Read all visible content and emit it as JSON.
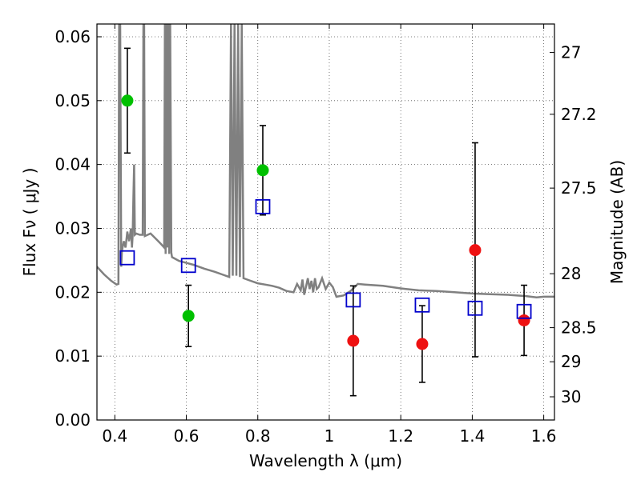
{
  "chart_data": {
    "type": "scatter",
    "title": "",
    "xlabel": "Wavelength  λ (μm)",
    "ylabel": "Flux  Fν  ( μJy )",
    "ylabel_right": "Magnitude (AB)",
    "xlim": [
      0.35,
      1.63
    ],
    "ylim": [
      0.0,
      0.062
    ],
    "grid": true,
    "x_ticks": [
      0.4,
      0.6,
      0.8,
      1.0,
      1.2,
      1.4,
      1.6
    ],
    "x_tick_labels": [
      "0.4",
      "0.6",
      "0.8",
      "1",
      "1.2",
      "1.4",
      "1.6"
    ],
    "y_ticks": [
      0.0,
      0.01,
      0.02,
      0.03,
      0.04,
      0.05,
      0.06
    ],
    "y_tick_labels": [
      "0.00",
      "0.01",
      "0.02",
      "0.03",
      "0.04",
      "0.05",
      "0.06"
    ],
    "right_ticks": [
      {
        "mag": 27,
        "label": "27"
      },
      {
        "mag": 27.2,
        "label": "27.2"
      },
      {
        "mag": 27.5,
        "label": "27.5"
      },
      {
        "mag": 28,
        "label": "28"
      },
      {
        "mag": 28.5,
        "label": "28.5"
      },
      {
        "mag": 29,
        "label": "29"
      },
      {
        "mag": 30,
        "label": "30"
      }
    ],
    "series": [
      {
        "marker": "filled-circle",
        "color": "#00c000",
        "points": [
          {
            "x": 0.435,
            "y": 0.05,
            "err_lo": 0.0418,
            "err_hi": 0.0582
          },
          {
            "x": 0.606,
            "y": 0.0163,
            "err_lo": 0.0115,
            "err_hi": 0.0211
          },
          {
            "x": 0.814,
            "y": 0.0391,
            "err_lo": 0.0321,
            "err_hi": 0.0461
          }
        ]
      },
      {
        "marker": "filled-circle",
        "color": "#ee1111",
        "points": [
          {
            "x": 1.067,
            "y": 0.0124,
            "err_lo": 0.0038,
            "err_hi": 0.021
          },
          {
            "x": 1.26,
            "y": 0.0119,
            "err_lo": 0.0059,
            "err_hi": 0.0179
          },
          {
            "x": 1.408,
            "y": 0.0266,
            "err_lo": 0.0099,
            "err_hi": 0.0434
          },
          {
            "x": 1.545,
            "y": 0.0156,
            "err_lo": 0.0101,
            "err_hi": 0.0211
          }
        ]
      },
      {
        "marker": "open-square",
        "color": "#0000cc",
        "points": [
          {
            "x": 0.435,
            "y": 0.0254
          },
          {
            "x": 0.606,
            "y": 0.0242
          },
          {
            "x": 0.814,
            "y": 0.0334
          },
          {
            "x": 1.067,
            "y": 0.0188
          },
          {
            "x": 1.26,
            "y": 0.018
          },
          {
            "x": 1.408,
            "y": 0.0175
          },
          {
            "x": 1.545,
            "y": 0.017
          }
        ]
      },
      {
        "type": "line",
        "color": "#808080",
        "points": [
          [
            0.35,
            0.024
          ],
          [
            0.37,
            0.0228
          ],
          [
            0.39,
            0.0218
          ],
          [
            0.405,
            0.0212
          ],
          [
            0.41,
            0.0213
          ],
          [
            0.412,
            0.062
          ],
          [
            0.415,
            0.062
          ],
          [
            0.418,
            0.024
          ],
          [
            0.42,
            0.0265
          ],
          [
            0.425,
            0.028
          ],
          [
            0.43,
            0.027
          ],
          [
            0.435,
            0.0295
          ],
          [
            0.44,
            0.028
          ],
          [
            0.445,
            0.03
          ],
          [
            0.448,
            0.027
          ],
          [
            0.45,
            0.029
          ],
          [
            0.452,
            0.035
          ],
          [
            0.454,
            0.04
          ],
          [
            0.456,
            0.029
          ],
          [
            0.46,
            0.0292
          ],
          [
            0.47,
            0.029
          ],
          [
            0.478,
            0.029
          ],
          [
            0.48,
            0.062
          ],
          [
            0.482,
            0.062
          ],
          [
            0.484,
            0.0288
          ],
          [
            0.5,
            0.0292
          ],
          [
            0.52,
            0.0281
          ],
          [
            0.53,
            0.0275
          ],
          [
            0.538,
            0.027
          ],
          [
            0.54,
            0.062
          ],
          [
            0.542,
            0.026
          ],
          [
            0.545,
            0.062
          ],
          [
            0.547,
            0.027
          ],
          [
            0.55,
            0.062
          ],
          [
            0.552,
            0.026
          ],
          [
            0.555,
            0.062
          ],
          [
            0.558,
            0.0262
          ],
          [
            0.56,
            0.0255
          ],
          [
            0.58,
            0.0249
          ],
          [
            0.6,
            0.0246
          ],
          [
            0.62,
            0.0243
          ],
          [
            0.65,
            0.0237
          ],
          [
            0.68,
            0.0232
          ],
          [
            0.7,
            0.0228
          ],
          [
            0.72,
            0.0224
          ],
          [
            0.725,
            0.062
          ],
          [
            0.73,
            0.0226
          ],
          [
            0.735,
            0.062
          ],
          [
            0.74,
            0.0226
          ],
          [
            0.745,
            0.062
          ],
          [
            0.75,
            0.0224
          ],
          [
            0.755,
            0.062
          ],
          [
            0.76,
            0.0222
          ],
          [
            0.78,
            0.0218
          ],
          [
            0.8,
            0.0214
          ],
          [
            0.82,
            0.0212
          ],
          [
            0.84,
            0.021
          ],
          [
            0.86,
            0.0207
          ],
          [
            0.88,
            0.0202
          ],
          [
            0.9,
            0.02
          ],
          [
            0.91,
            0.0213
          ],
          [
            0.92,
            0.0203
          ],
          [
            0.925,
            0.022
          ],
          [
            0.93,
            0.0196
          ],
          [
            0.94,
            0.0222
          ],
          [
            0.945,
            0.0205
          ],
          [
            0.95,
            0.0218
          ],
          [
            0.955,
            0.02
          ],
          [
            0.96,
            0.0222
          ],
          [
            0.965,
            0.0205
          ],
          [
            0.97,
            0.0208
          ],
          [
            0.98,
            0.0222
          ],
          [
            0.99,
            0.0205
          ],
          [
            1.0,
            0.0215
          ],
          [
            1.01,
            0.0208
          ],
          [
            1.02,
            0.0193
          ],
          [
            1.04,
            0.0195
          ],
          [
            1.06,
            0.0202
          ],
          [
            1.08,
            0.0213
          ],
          [
            1.1,
            0.0212
          ],
          [
            1.15,
            0.021
          ],
          [
            1.2,
            0.0206
          ],
          [
            1.25,
            0.0203
          ],
          [
            1.3,
            0.0202
          ],
          [
            1.35,
            0.02
          ],
          [
            1.4,
            0.0198
          ],
          [
            1.45,
            0.0197
          ],
          [
            1.5,
            0.0196
          ],
          [
            1.55,
            0.0194
          ],
          [
            1.58,
            0.0192
          ],
          [
            1.6,
            0.0193
          ],
          [
            1.63,
            0.0193
          ]
        ]
      }
    ]
  }
}
